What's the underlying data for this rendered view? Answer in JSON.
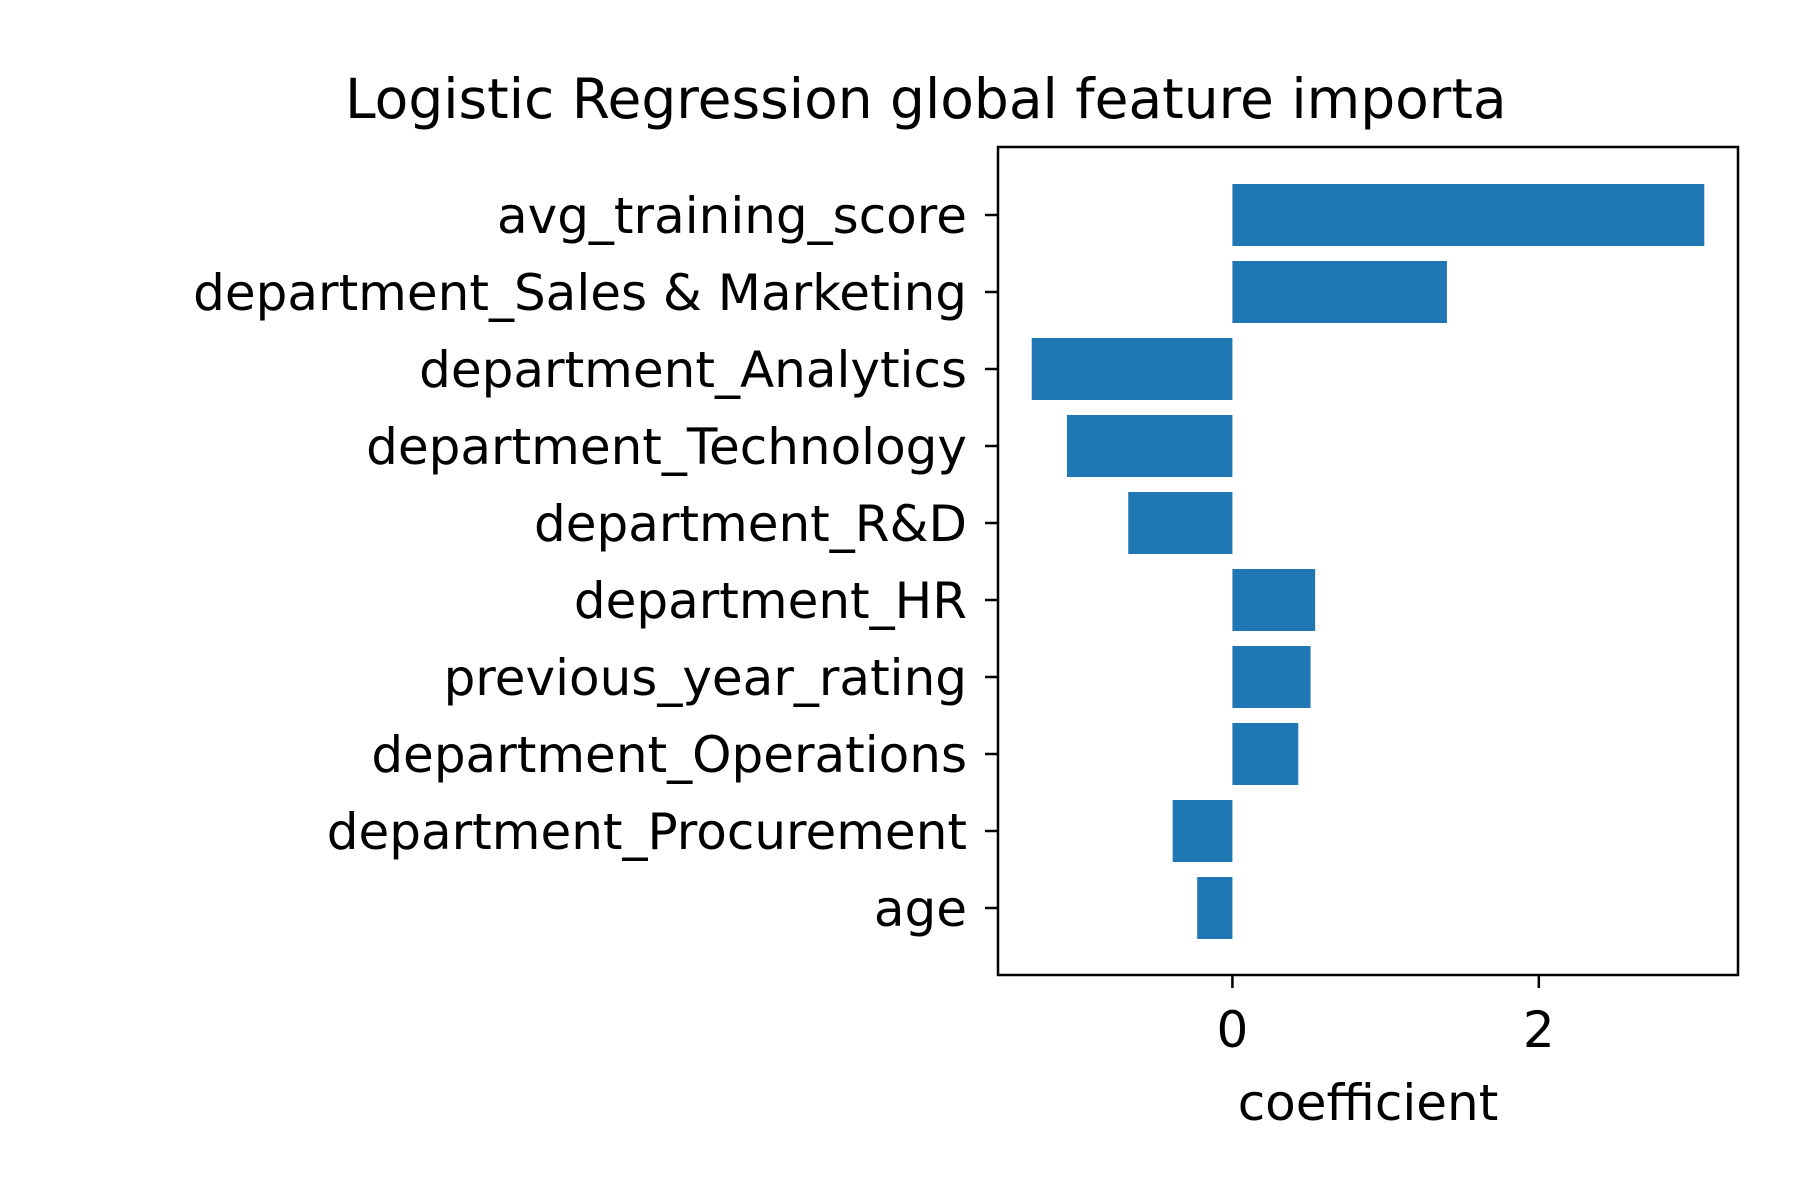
{
  "chart_data": {
    "type": "bar",
    "orientation": "horizontal",
    "title": "Logistic Regression global feature importa",
    "xlabel": "coefficient",
    "ylabel": "",
    "categories": [
      "avg_training_score",
      "department_Sales & Marketing",
      "department_Analytics",
      "department_Technology",
      "department_R&D",
      "department_HR",
      "previous_year_rating",
      "department_Operations",
      "department_Procurement",
      "age"
    ],
    "values": [
      3.08,
      1.4,
      -1.31,
      -1.08,
      -0.68,
      0.54,
      0.51,
      0.43,
      -0.39,
      -0.23
    ],
    "xlim": [
      -1.53,
      3.3
    ],
    "xticks": [
      0,
      2
    ],
    "xtick_labels": [
      "0",
      "2"
    ],
    "bar_color": "#1f77b4",
    "grid": false,
    "legend": "none"
  }
}
